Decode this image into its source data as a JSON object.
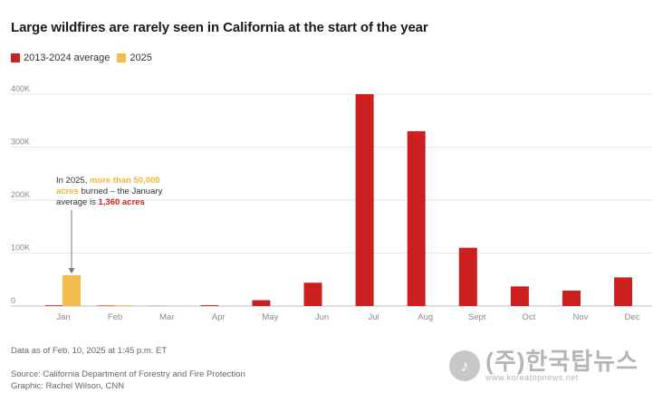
{
  "title": "Large wildfires are rarely seen in California at the start of the year",
  "legend": [
    {
      "label": "2013-2024 average",
      "color": "#cc1f1f"
    },
    {
      "label": "2025",
      "color": "#f2bd4b"
    }
  ],
  "annotation": {
    "prefix": "In 2025, ",
    "highlight1": "more than 50,000 acres",
    "middle": " burned – the January average is ",
    "highlight2": "1,360 acres"
  },
  "footer": {
    "data_note": "Data as of Feb. 10, 2025 at 1:45 p.m. ET",
    "source": "Source: California Department of Forestry and Fire Protection",
    "graphic": "Graphic: Rachel Wilson, CNN"
  },
  "watermark": {
    "main": "(주)한국탑뉴스",
    "sub": "www.koreatopnews.net",
    "logo_glyph": "♪"
  },
  "chart_data": {
    "type": "bar",
    "categories": [
      "Jan",
      "Feb",
      "Mar",
      "Apr",
      "May",
      "Jun",
      "Jul",
      "Aug",
      "Sept",
      "Oct",
      "Nov",
      "Dec"
    ],
    "series": [
      {
        "name": "2013-2024 average",
        "color": "#cc1f1f",
        "values": [
          1360,
          1000,
          300,
          1500,
          11000,
          44000,
          400000,
          330000,
          110000,
          37000,
          29000,
          54000
        ]
      },
      {
        "name": "2025",
        "color": "#f2bd4b",
        "values": [
          58000,
          1500,
          null,
          null,
          null,
          null,
          null,
          null,
          null,
          null,
          null,
          null
        ]
      }
    ],
    "ylim": [
      0,
      400000
    ],
    "yticks": [
      0,
      100000,
      200000,
      300000,
      400000
    ],
    "ytick_labels": [
      "0",
      "100K",
      "200K",
      "300K",
      "400K"
    ],
    "grid": true
  }
}
